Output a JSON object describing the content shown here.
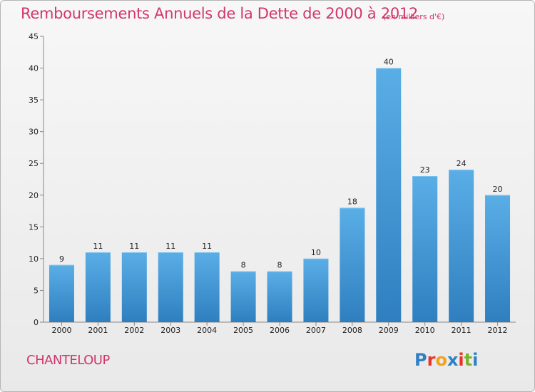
{
  "header": {
    "title": "Remboursements Annuels de la Dette de 2000 à 2012",
    "subtitle": "(en milliers d'€)"
  },
  "footer": {
    "commune": "CHANTELOUP",
    "logo_text": "Proxiti",
    "logo_colors": [
      "#2f80c6",
      "#e8332a",
      "#f2a31b",
      "#2f80c6",
      "#e8332a",
      "#7bb32e",
      "#2f80c6"
    ]
  },
  "colors": {
    "accent_text": "#d2366e",
    "bar_top": "#5aaee6",
    "bar_bottom": "#2f7fc0",
    "grid": "#c8c8c8"
  },
  "chart_data": {
    "type": "bar",
    "title": "Remboursements Annuels de la Dette de 2000 à 2012",
    "subtitle": "(en milliers d'€)",
    "xlabel": "",
    "ylabel": "",
    "categories": [
      "2000",
      "2001",
      "2002",
      "2003",
      "2004",
      "2005",
      "2006",
      "2007",
      "2008",
      "2009",
      "2010",
      "2011",
      "2012"
    ],
    "values": [
      9,
      11,
      11,
      11,
      11,
      8,
      8,
      10,
      18,
      40,
      23,
      24,
      20
    ],
    "ylim": [
      0,
      45
    ],
    "yticks": [
      0,
      5,
      10,
      15,
      20,
      25,
      30,
      35,
      40,
      45
    ],
    "grid": false,
    "data_labels": true,
    "legend": "none"
  }
}
